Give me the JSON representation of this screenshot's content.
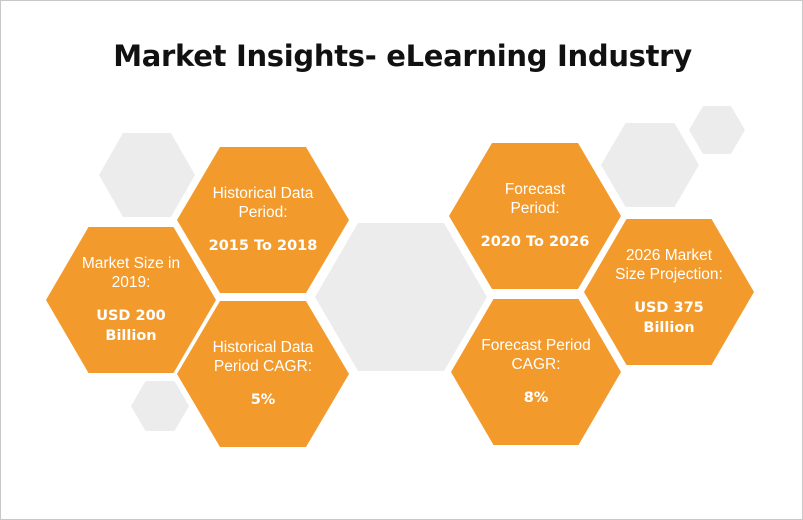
{
  "title": "Market Insights- eLearning Industry",
  "colors": {
    "accent": "#f39a2c",
    "placeholder": "#ececec",
    "text": "#111111"
  },
  "hexagons": [
    {
      "label": "Market Size in 2019:",
      "value": "USD 200 Billion"
    },
    {
      "label": "Historical Data Period:",
      "value": "2015 To 2018"
    },
    {
      "label": "Historical Data Period CAGR:",
      "value": "5%"
    },
    {
      "label": "Forecast Period:",
      "value": "2020 To 2026"
    },
    {
      "label": "Forecast Period CAGR:",
      "value": "8%"
    },
    {
      "label": "2026 Market Size Projection:",
      "value": "USD 375 Billion"
    }
  ]
}
